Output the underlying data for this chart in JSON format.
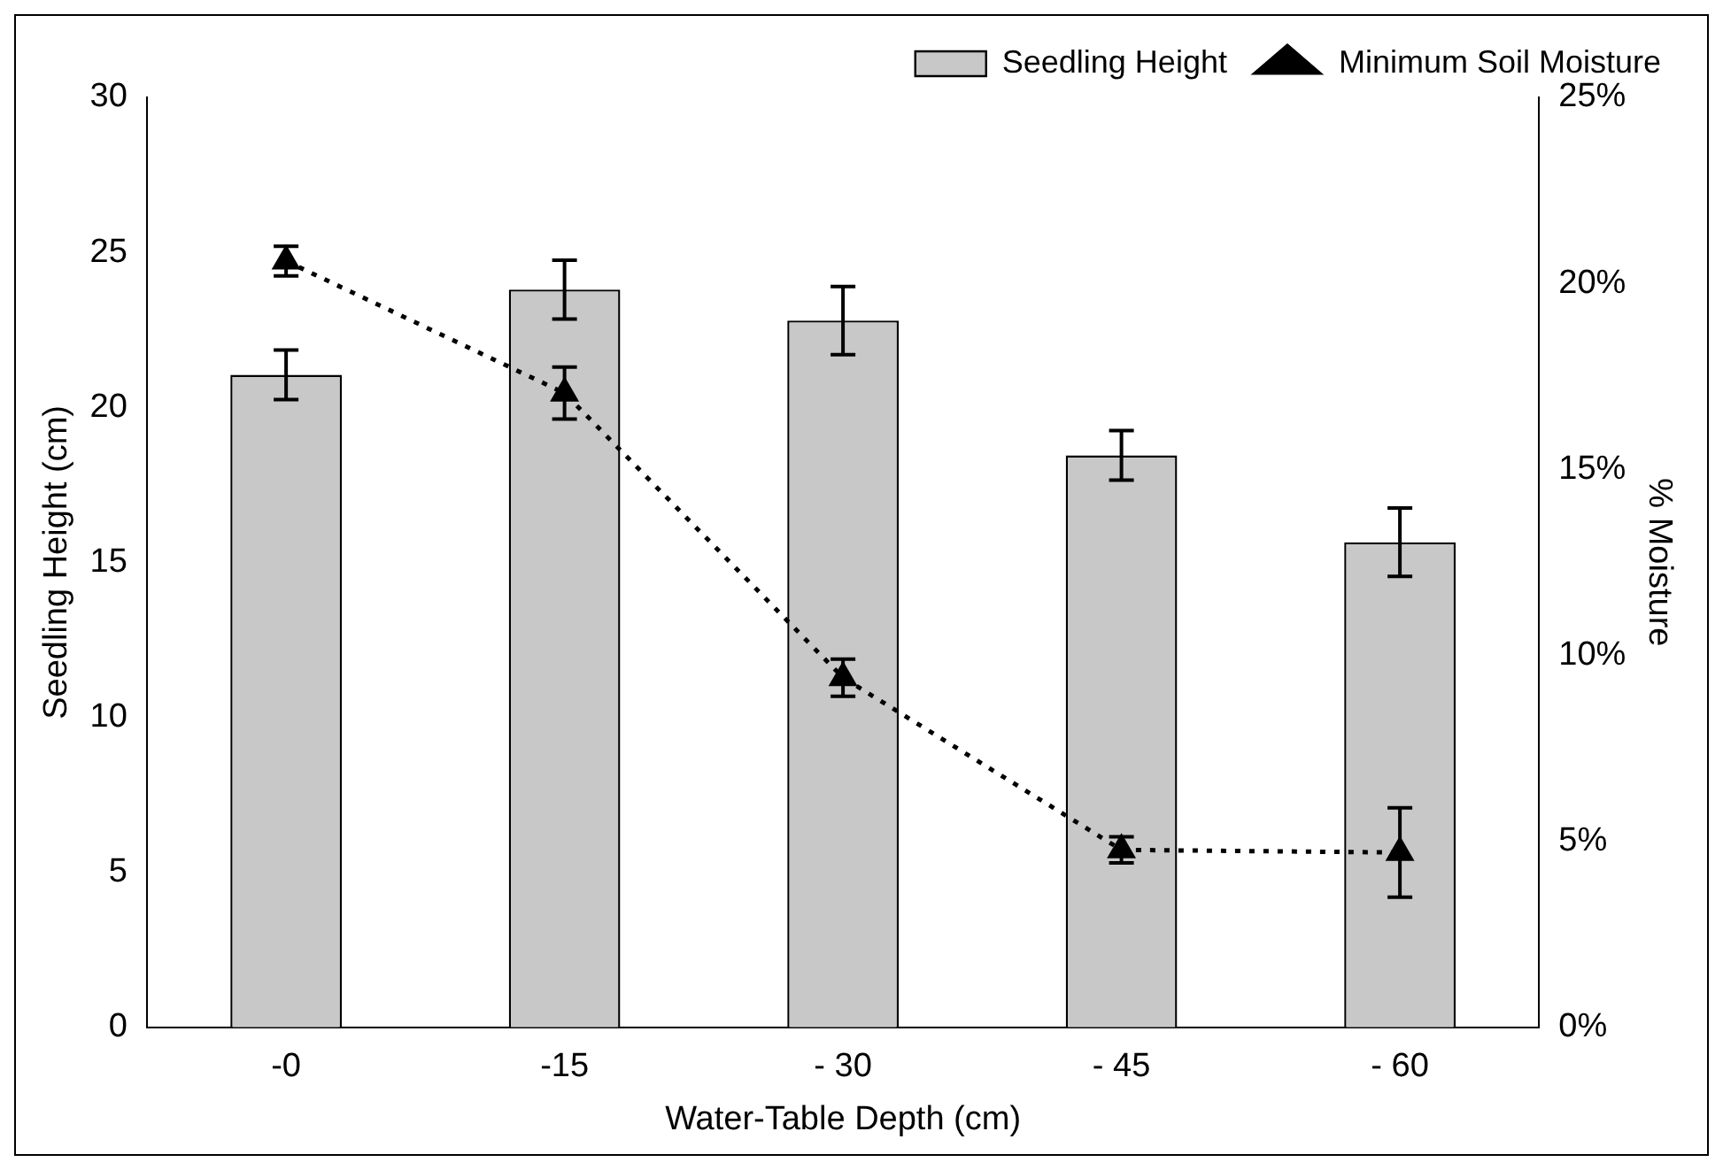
{
  "chart_data": {
    "type": "bar",
    "xlabel": "Water-Table Depth (cm)",
    "ylabel": "Seedling Height (cm)",
    "y2label": "% Moisture",
    "categories": [
      "-0",
      "-15",
      "- 30",
      "- 45",
      "- 60"
    ],
    "series": [
      {
        "name": "Seedling Height",
        "color": "#c8c8c8",
        "values": [
          21.05,
          23.8,
          22.8,
          18.45,
          15.65
        ],
        "errors": [
          0.8,
          0.95,
          1.1,
          0.8,
          1.1
        ]
      },
      {
        "name": "Minimum Soil Moisture",
        "type": "line",
        "axis": "y2",
        "color": "#000000",
        "marker": "triangle",
        "line_style": "dotted",
        "values": [
          20.6,
          17.05,
          9.4,
          4.77,
          4.7
        ],
        "errors": [
          0.4,
          0.7,
          0.5,
          0.35,
          1.2
        ]
      }
    ],
    "ylim": [
      0,
      30
    ],
    "yticks": [
      0,
      5,
      10,
      15,
      20,
      25,
      30
    ],
    "y2lim": [
      0,
      25
    ],
    "y2ticks": [
      {
        "value": 0,
        "label": "0%"
      },
      {
        "value": 5,
        "label": "5%"
      },
      {
        "value": 10,
        "label": "10%"
      },
      {
        "value": 15,
        "label": "15%"
      },
      {
        "value": 20,
        "label": "20%"
      },
      {
        "value": 25,
        "label": "25%"
      }
    ],
    "grid": false,
    "legend": "top right"
  }
}
